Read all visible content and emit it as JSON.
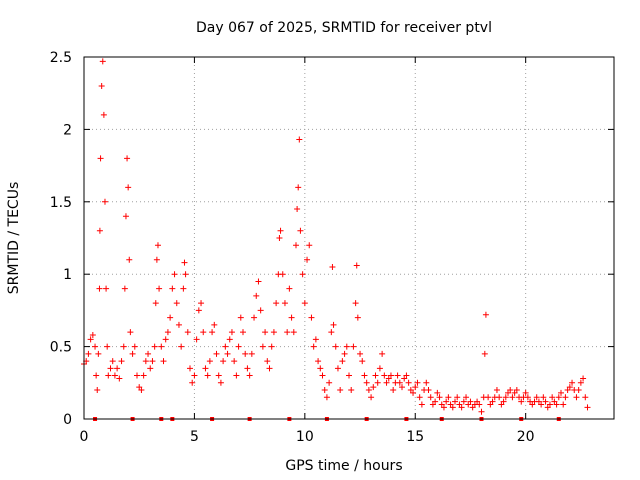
{
  "chart_data": {
    "type": "scatter",
    "title": "Day 067 of 2025, SRMTID for receiver ptvl",
    "xlabel": "GPS time / hours",
    "ylabel": "SRMTID / TECUs",
    "xlim": [
      0,
      24
    ],
    "ylim": [
      0,
      2.5
    ],
    "xticks": [
      0,
      5,
      10,
      15,
      20
    ],
    "xtick_labels": [
      "0",
      "5",
      "10",
      "15",
      "20"
    ],
    "yticks": [
      0,
      0.5,
      1,
      1.5,
      2,
      2.5
    ],
    "ytick_labels": [
      "0",
      "0.5",
      "1",
      "1.5",
      "2",
      "2.5"
    ],
    "grid": true,
    "series": [
      {
        "name": "SRMTID",
        "marker": "plus",
        "color": "#ff0000",
        "points": [
          [
            0.0,
            0.38
          ],
          [
            0.1,
            0.4
          ],
          [
            0.2,
            0.45
          ],
          [
            0.3,
            0.55
          ],
          [
            0.4,
            0.58
          ],
          [
            0.5,
            0.5
          ],
          [
            0.55,
            0.3
          ],
          [
            0.6,
            0.2
          ],
          [
            0.65,
            0.45
          ],
          [
            0.7,
            0.9
          ],
          [
            0.72,
            1.3
          ],
          [
            0.75,
            1.8
          ],
          [
            0.8,
            2.3
          ],
          [
            0.85,
            2.47
          ],
          [
            0.9,
            2.1
          ],
          [
            0.95,
            1.5
          ],
          [
            1.0,
            0.9
          ],
          [
            1.05,
            0.5
          ],
          [
            1.1,
            0.3
          ],
          [
            1.2,
            0.35
          ],
          [
            1.3,
            0.4
          ],
          [
            1.4,
            0.3
          ],
          [
            1.5,
            0.35
          ],
          [
            1.6,
            0.28
          ],
          [
            1.7,
            0.4
          ],
          [
            1.8,
            0.5
          ],
          [
            1.85,
            0.9
          ],
          [
            1.9,
            1.4
          ],
          [
            1.95,
            1.8
          ],
          [
            2.0,
            1.6
          ],
          [
            2.05,
            1.1
          ],
          [
            2.1,
            0.6
          ],
          [
            2.2,
            0.45
          ],
          [
            2.3,
            0.5
          ],
          [
            2.4,
            0.3
          ],
          [
            2.5,
            0.22
          ],
          [
            2.6,
            0.2
          ],
          [
            2.7,
            0.3
          ],
          [
            2.8,
            0.4
          ],
          [
            2.9,
            0.45
          ],
          [
            3.0,
            0.35
          ],
          [
            3.1,
            0.4
          ],
          [
            3.2,
            0.5
          ],
          [
            3.25,
            0.8
          ],
          [
            3.3,
            1.1
          ],
          [
            3.35,
            1.2
          ],
          [
            3.4,
            0.9
          ],
          [
            3.5,
            0.5
          ],
          [
            3.6,
            0.4
          ],
          [
            3.7,
            0.55
          ],
          [
            3.8,
            0.6
          ],
          [
            3.9,
            0.7
          ],
          [
            4.0,
            0.9
          ],
          [
            4.1,
            1.0
          ],
          [
            4.2,
            0.8
          ],
          [
            4.3,
            0.65
          ],
          [
            4.4,
            0.5
          ],
          [
            4.5,
            0.9
          ],
          [
            4.55,
            1.08
          ],
          [
            4.6,
            1.0
          ],
          [
            4.7,
            0.6
          ],
          [
            4.8,
            0.35
          ],
          [
            4.9,
            0.25
          ],
          [
            5.0,
            0.3
          ],
          [
            5.1,
            0.55
          ],
          [
            5.2,
            0.75
          ],
          [
            5.3,
            0.8
          ],
          [
            5.4,
            0.6
          ],
          [
            5.5,
            0.35
          ],
          [
            5.6,
            0.3
          ],
          [
            5.7,
            0.4
          ],
          [
            5.8,
            0.6
          ],
          [
            5.9,
            0.65
          ],
          [
            6.0,
            0.45
          ],
          [
            6.1,
            0.3
          ],
          [
            6.2,
            0.25
          ],
          [
            6.3,
            0.4
          ],
          [
            6.4,
            0.5
          ],
          [
            6.5,
            0.45
          ],
          [
            6.6,
            0.55
          ],
          [
            6.7,
            0.6
          ],
          [
            6.8,
            0.4
          ],
          [
            6.9,
            0.3
          ],
          [
            7.0,
            0.5
          ],
          [
            7.1,
            0.7
          ],
          [
            7.2,
            0.6
          ],
          [
            7.3,
            0.45
          ],
          [
            7.4,
            0.35
          ],
          [
            7.5,
            0.3
          ],
          [
            7.6,
            0.45
          ],
          [
            7.7,
            0.7
          ],
          [
            7.8,
            0.85
          ],
          [
            7.9,
            0.95
          ],
          [
            8.0,
            0.75
          ],
          [
            8.1,
            0.5
          ],
          [
            8.2,
            0.6
          ],
          [
            8.3,
            0.4
          ],
          [
            8.4,
            0.35
          ],
          [
            8.5,
            0.5
          ],
          [
            8.6,
            0.6
          ],
          [
            8.7,
            0.8
          ],
          [
            8.8,
            1.0
          ],
          [
            8.85,
            1.25
          ],
          [
            8.9,
            1.3
          ],
          [
            9.0,
            1.0
          ],
          [
            9.1,
            0.8
          ],
          [
            9.2,
            0.6
          ],
          [
            9.3,
            0.9
          ],
          [
            9.4,
            0.7
          ],
          [
            9.5,
            0.6
          ],
          [
            9.6,
            1.2
          ],
          [
            9.65,
            1.45
          ],
          [
            9.7,
            1.6
          ],
          [
            9.75,
            1.93
          ],
          [
            9.8,
            1.3
          ],
          [
            9.9,
            1.0
          ],
          [
            10.0,
            0.8
          ],
          [
            10.1,
            1.1
          ],
          [
            10.2,
            1.2
          ],
          [
            10.3,
            0.7
          ],
          [
            10.4,
            0.5
          ],
          [
            10.5,
            0.55
          ],
          [
            10.6,
            0.4
          ],
          [
            10.7,
            0.35
          ],
          [
            10.8,
            0.3
          ],
          [
            10.9,
            0.2
          ],
          [
            11.0,
            0.15
          ],
          [
            11.1,
            0.25
          ],
          [
            11.2,
            0.6
          ],
          [
            11.25,
            1.05
          ],
          [
            11.3,
            0.65
          ],
          [
            11.4,
            0.5
          ],
          [
            11.5,
            0.35
          ],
          [
            11.6,
            0.2
          ],
          [
            11.7,
            0.4
          ],
          [
            11.8,
            0.45
          ],
          [
            11.9,
            0.5
          ],
          [
            12.0,
            0.3
          ],
          [
            12.1,
            0.2
          ],
          [
            12.2,
            0.5
          ],
          [
            12.3,
            0.8
          ],
          [
            12.35,
            1.06
          ],
          [
            12.4,
            0.7
          ],
          [
            12.5,
            0.45
          ],
          [
            12.6,
            0.4
          ],
          [
            12.7,
            0.3
          ],
          [
            12.8,
            0.25
          ],
          [
            12.9,
            0.2
          ],
          [
            13.0,
            0.15
          ],
          [
            13.1,
            0.22
          ],
          [
            13.2,
            0.3
          ],
          [
            13.3,
            0.25
          ],
          [
            13.4,
            0.35
          ],
          [
            13.5,
            0.45
          ],
          [
            13.6,
            0.3
          ],
          [
            13.7,
            0.25
          ],
          [
            13.8,
            0.28
          ],
          [
            13.9,
            0.3
          ],
          [
            14.0,
            0.2
          ],
          [
            14.1,
            0.25
          ],
          [
            14.2,
            0.3
          ],
          [
            14.3,
            0.25
          ],
          [
            14.4,
            0.22
          ],
          [
            14.5,
            0.28
          ],
          [
            14.6,
            0.3
          ],
          [
            14.7,
            0.25
          ],
          [
            14.8,
            0.2
          ],
          [
            14.9,
            0.18
          ],
          [
            15.0,
            0.22
          ],
          [
            15.1,
            0.25
          ],
          [
            15.2,
            0.15
          ],
          [
            15.3,
            0.1
          ],
          [
            15.4,
            0.2
          ],
          [
            15.5,
            0.25
          ],
          [
            15.6,
            0.2
          ],
          [
            15.7,
            0.15
          ],
          [
            15.8,
            0.1
          ],
          [
            15.9,
            0.12
          ],
          [
            16.0,
            0.18
          ],
          [
            16.1,
            0.15
          ],
          [
            16.2,
            0.1
          ],
          [
            16.3,
            0.08
          ],
          [
            16.4,
            0.12
          ],
          [
            16.5,
            0.15
          ],
          [
            16.6,
            0.1
          ],
          [
            16.7,
            0.08
          ],
          [
            16.8,
            0.12
          ],
          [
            16.9,
            0.15
          ],
          [
            17.0,
            0.1
          ],
          [
            17.1,
            0.08
          ],
          [
            17.2,
            0.12
          ],
          [
            17.3,
            0.15
          ],
          [
            17.4,
            0.1
          ],
          [
            17.5,
            0.12
          ],
          [
            17.6,
            0.08
          ],
          [
            17.7,
            0.1
          ],
          [
            17.8,
            0.12
          ],
          [
            17.9,
            0.1
          ],
          [
            18.0,
            0.05
          ],
          [
            18.1,
            0.15
          ],
          [
            18.15,
            0.45
          ],
          [
            18.2,
            0.72
          ],
          [
            18.3,
            0.15
          ],
          [
            18.4,
            0.1
          ],
          [
            18.5,
            0.12
          ],
          [
            18.6,
            0.15
          ],
          [
            18.7,
            0.2
          ],
          [
            18.8,
            0.15
          ],
          [
            18.9,
            0.1
          ],
          [
            19.0,
            0.12
          ],
          [
            19.1,
            0.15
          ],
          [
            19.2,
            0.18
          ],
          [
            19.3,
            0.2
          ],
          [
            19.4,
            0.15
          ],
          [
            19.5,
            0.18
          ],
          [
            19.6,
            0.2
          ],
          [
            19.7,
            0.15
          ],
          [
            19.8,
            0.12
          ],
          [
            19.9,
            0.15
          ],
          [
            20.0,
            0.18
          ],
          [
            20.1,
            0.15
          ],
          [
            20.2,
            0.12
          ],
          [
            20.3,
            0.1
          ],
          [
            20.4,
            0.12
          ],
          [
            20.5,
            0.15
          ],
          [
            20.6,
            0.12
          ],
          [
            20.7,
            0.1
          ],
          [
            20.8,
            0.15
          ],
          [
            20.9,
            0.12
          ],
          [
            21.0,
            0.08
          ],
          [
            21.1,
            0.1
          ],
          [
            21.2,
            0.15
          ],
          [
            21.3,
            0.12
          ],
          [
            21.4,
            0.1
          ],
          [
            21.5,
            0.15
          ],
          [
            21.6,
            0.18
          ],
          [
            21.7,
            0.1
          ],
          [
            21.8,
            0.15
          ],
          [
            21.9,
            0.2
          ],
          [
            22.0,
            0.22
          ],
          [
            22.1,
            0.25
          ],
          [
            22.2,
            0.2
          ],
          [
            22.3,
            0.15
          ],
          [
            22.4,
            0.2
          ],
          [
            22.5,
            0.25
          ],
          [
            22.6,
            0.28
          ],
          [
            22.7,
            0.15
          ],
          [
            22.8,
            0.08
          ]
        ]
      }
    ],
    "baseline_markers": [
      0.5,
      2.2,
      3.5,
      4.0,
      5.8,
      7.5,
      9.3,
      11.0,
      12.8,
      14.6,
      16.2,
      18.0,
      19.8,
      21.5
    ]
  }
}
